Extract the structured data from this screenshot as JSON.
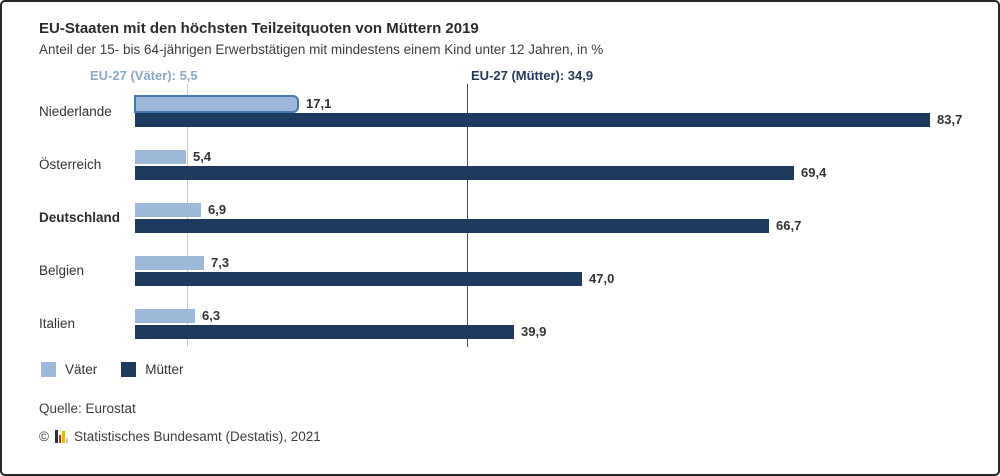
{
  "header": {
    "title": "EU-Staaten mit den höchsten Teilzeitquoten von Müttern 2019",
    "subtitle": "Anteil der 15- bis 64-jährigen Erwerbstätigen mit mindestens einem Kind unter 12 Jahren, in %"
  },
  "chart_data": {
    "type": "bar",
    "orientation": "horizontal",
    "title": "EU-Staaten mit den höchsten Teilzeitquoten von Müttern 2019",
    "subtitle": "Anteil der 15- bis 64-jährigen Erwerbstätigen mit mindestens einem Kind unter 12 Jahren, in %",
    "categories": [
      "Niederlande",
      "Österreich",
      "Deutschland",
      "Belgien",
      "Italien"
    ],
    "series": [
      {
        "name": "Väter",
        "color": "#9cb9da",
        "values": [
          17.1,
          5.4,
          6.9,
          7.3,
          6.3
        ],
        "labels": [
          "17,1",
          "5,4",
          "6,9",
          "7,3",
          "6,3"
        ]
      },
      {
        "name": "Mütter",
        "color": "#1d3b5f",
        "values": [
          83.7,
          69.4,
          66.7,
          47.0,
          39.9
        ],
        "labels": [
          "83,7",
          "69,4",
          "66,7",
          "47,0",
          "39,9"
        ]
      }
    ],
    "reference_lines": [
      {
        "series": "Väter",
        "label": "EU-27 (Väter): 5,5",
        "value": 5.5,
        "line_color": "#b9cfe5",
        "label_color": "#8ba7ca"
      },
      {
        "series": "Mütter",
        "label": "EU-27 (Mütter): 34,9",
        "value": 34.9,
        "line_color": "#3c5166",
        "label_color": "#243a5a"
      }
    ],
    "emphasized_category": "Deutschland",
    "highlighted_bar": {
      "series": "Väter",
      "category": "Niederlande",
      "border_color": "#4878b0"
    },
    "xlim": [
      0,
      90
    ],
    "grid": false,
    "legend_position": "bottom",
    "value_format": "german-comma"
  },
  "legend": {
    "items": [
      {
        "label": "Väter",
        "color": "#9cb9da"
      },
      {
        "label": "Mütter",
        "color": "#1d3b5f"
      }
    ]
  },
  "footer": {
    "source": "Quelle: Eurostat",
    "copyright_prefix": "©",
    "copyright": "Statistisches Bundesamt (Destatis), 2021"
  }
}
